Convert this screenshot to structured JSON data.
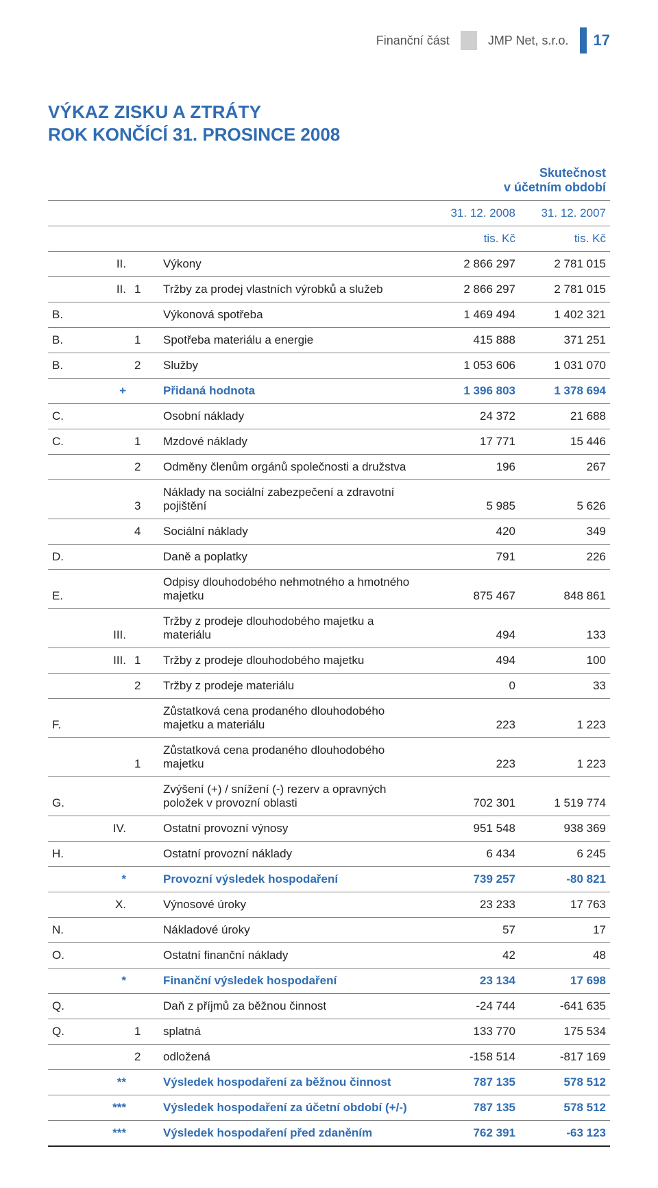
{
  "header": {
    "section": "Finanční část",
    "company": "JMP Net, s.r.o.",
    "page_number": "17"
  },
  "title_line1": "VÝKAZ ZISKU A ZTRÁTY",
  "title_line2": "ROK KONČÍCÍ 31. PROSINCE 2008",
  "period_header_line1": "Skutečnost",
  "period_header_line2": "v účetním období",
  "col_date_1": "31. 12. 2008",
  "col_date_2": "31. 12. 2007",
  "col_unit_1": "tis. Kč",
  "col_unit_2": "tis. Kč",
  "rows": [
    {
      "a": "",
      "b": "II.",
      "c": "",
      "d": "Výkony",
      "v1": "2 866 297",
      "v2": "2 781 015",
      "cls": ""
    },
    {
      "a": "",
      "b": "II.",
      "c": "1",
      "d": "Tržby za prodej vlastních výrobků a služeb",
      "v1": "2 866 297",
      "v2": "2 781 015",
      "cls": ""
    },
    {
      "a": "B.",
      "b": "",
      "c": "",
      "d": "Výkonová spotřeba",
      "v1": "1 469 494",
      "v2": "1 402 321",
      "cls": ""
    },
    {
      "a": "B.",
      "b": "",
      "c": "1",
      "d": "Spotřeba materiálu a energie",
      "v1": "415 888",
      "v2": "371 251",
      "cls": ""
    },
    {
      "a": "B.",
      "b": "",
      "c": "2",
      "d": "Služby",
      "v1": "1 053 606",
      "v2": "1 031 070",
      "cls": ""
    },
    {
      "a": "",
      "b": "+",
      "c": "",
      "d": "Přidaná hodnota",
      "v1": "1 396 803",
      "v2": "1 378 694",
      "cls": "blue"
    },
    {
      "a": "C.",
      "b": "",
      "c": "",
      "d": "Osobní náklady",
      "v1": "24 372",
      "v2": "21 688",
      "cls": ""
    },
    {
      "a": "C.",
      "b": "",
      "c": "1",
      "d": "Mzdové náklady",
      "v1": "17 771",
      "v2": "15 446",
      "cls": ""
    },
    {
      "a": "",
      "b": "",
      "c": "2",
      "d": "Odměny členům orgánů společnosti a družstva",
      "v1": "196",
      "v2": "267",
      "cls": ""
    },
    {
      "a": "",
      "b": "",
      "c": "3",
      "d": "Náklady na sociální zabezpečení a zdravotní pojištění",
      "v1": "5 985",
      "v2": "5 626",
      "cls": ""
    },
    {
      "a": "",
      "b": "",
      "c": "4",
      "d": "Sociální náklady",
      "v1": "420",
      "v2": "349",
      "cls": ""
    },
    {
      "a": "D.",
      "b": "",
      "c": "",
      "d": "Daně a poplatky",
      "v1": "791",
      "v2": "226",
      "cls": ""
    },
    {
      "a": "E.",
      "b": "",
      "c": "",
      "d": "Odpisy dlouhodobého nehmotného a hmotného majetku",
      "v1": "875 467",
      "v2": "848 861",
      "cls": ""
    },
    {
      "a": "",
      "b": "III.",
      "c": "",
      "d": "Tržby z prodeje dlouhodobého majetku a materiálu",
      "v1": "494",
      "v2": "133",
      "cls": ""
    },
    {
      "a": "",
      "b": "III.",
      "c": "1",
      "d": "Tržby z prodeje dlouhodobého majetku",
      "v1": "494",
      "v2": "100",
      "cls": ""
    },
    {
      "a": "",
      "b": "",
      "c": "2",
      "d": "Tržby z prodeje materiálu",
      "v1": "0",
      "v2": "33",
      "cls": ""
    },
    {
      "a": "F.",
      "b": "",
      "c": "",
      "d": "Zůstatková cena prodaného dlouhodobého majetku a materiálu",
      "v1": "223",
      "v2": "1 223",
      "cls": ""
    },
    {
      "a": "",
      "b": "",
      "c": "1",
      "d": "Zůstatková cena prodaného dlouhodobého majetku",
      "v1": "223",
      "v2": "1 223",
      "cls": ""
    },
    {
      "a": "G.",
      "b": "",
      "c": "",
      "d": "Zvýšení (+) / snížení (-) rezerv a opravných položek v provozní oblasti",
      "v1": "702 301",
      "v2": "1 519 774",
      "cls": ""
    },
    {
      "a": "",
      "b": "IV.",
      "c": "",
      "d": "Ostatní provozní výnosy",
      "v1": "951 548",
      "v2": "938 369",
      "cls": ""
    },
    {
      "a": "H.",
      "b": "",
      "c": "",
      "d": "Ostatní provozní náklady",
      "v1": "6 434",
      "v2": "6 245",
      "cls": ""
    },
    {
      "a": "",
      "b": "*",
      "c": "",
      "d": "Provozní výsledek hospodaření",
      "v1": "739 257",
      "v2": "-80 821",
      "cls": "blue"
    },
    {
      "a": "",
      "b": "X.",
      "c": "",
      "d": "Výnosové úroky",
      "v1": "23 233",
      "v2": "17 763",
      "cls": ""
    },
    {
      "a": "N.",
      "b": "",
      "c": "",
      "d": "Nákladové úroky",
      "v1": "57",
      "v2": "17",
      "cls": ""
    },
    {
      "a": "O.",
      "b": "",
      "c": "",
      "d": "Ostatní finanční náklady",
      "v1": "42",
      "v2": "48",
      "cls": ""
    },
    {
      "a": "",
      "b": "*",
      "c": "",
      "d": "Finanční výsledek hospodaření",
      "v1": "23 134",
      "v2": "17 698",
      "cls": "blue"
    },
    {
      "a": "Q.",
      "b": "",
      "c": "",
      "d": "Daň z příjmů za běžnou činnost",
      "v1": "-24 744",
      "v2": "-641 635",
      "cls": ""
    },
    {
      "a": "Q.",
      "b": "",
      "c": "1",
      "d": "splatná",
      "v1": "133 770",
      "v2": "175 534",
      "cls": ""
    },
    {
      "a": "",
      "b": "",
      "c": "2",
      "d": "odložená",
      "v1": "-158 514",
      "v2": "-817 169",
      "cls": ""
    },
    {
      "a": "",
      "b": "**",
      "c": "",
      "d": "Výsledek hospodaření za běžnou činnost",
      "v1": "787 135",
      "v2": "578 512",
      "cls": "blue"
    },
    {
      "a": "",
      "b": "***",
      "c": "",
      "d": "Výsledek hospodaření za účetní období (+/-)",
      "v1": "787 135",
      "v2": "578 512",
      "cls": "blue"
    },
    {
      "a": "",
      "b": "***",
      "c": "",
      "d": "Výsledek hospodaření před zdaněním",
      "v1": "762 391",
      "v2": "-63 123",
      "cls": "blue",
      "thick": true
    }
  ],
  "style": {
    "accent": "#2f6db3",
    "rule": "#808080",
    "thick_rule": "#222222",
    "bg": "#ffffff",
    "font_size_body": 17,
    "font_size_title": 26
  }
}
